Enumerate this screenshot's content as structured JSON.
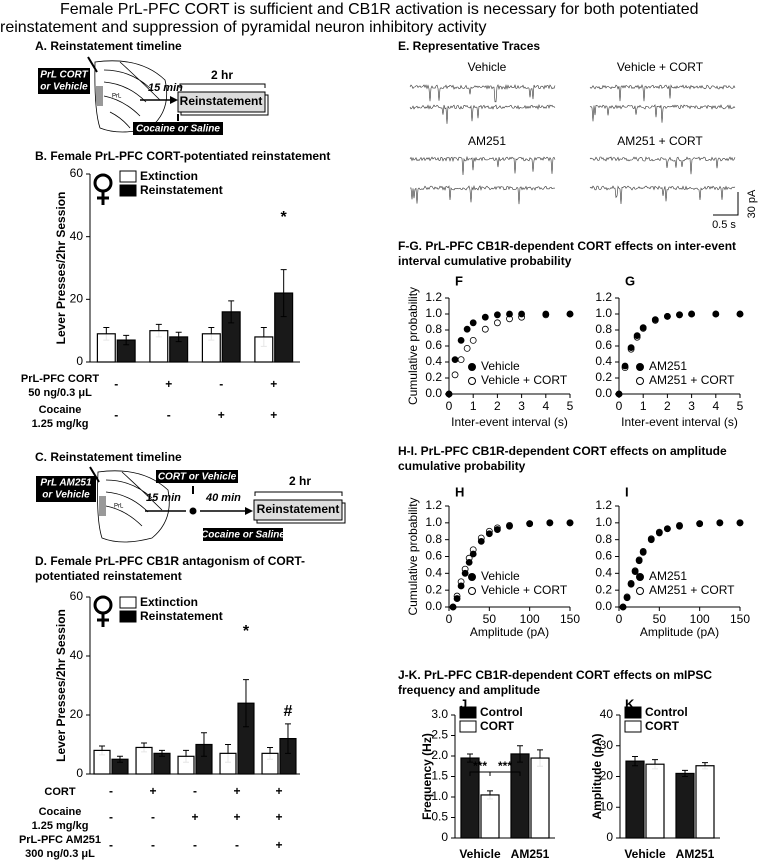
{
  "title": [
    "Female PrL-PFC CORT is sufficient and CB1R activation is necessary for both potentiated",
    "reinstatement and suppression of pyramidal neuron inhibitory activity"
  ],
  "panel_a": {
    "title": "A. Reinstatement timeline",
    "treatment": [
      "PrL CORT",
      "or Vehicle"
    ],
    "region": "PrL",
    "delay": "15 min",
    "duration": "2 hr",
    "session": "Reinstatement",
    "prime": "Cocaine or Saline"
  },
  "panel_c": {
    "title": "C. Reinstatement timeline",
    "treatment": [
      "PrL AM251",
      "or Vehicle"
    ],
    "region": "PrL",
    "second_treatment": "CORT or Vehicle",
    "delay_1": "15 min",
    "delay_2": "40 min",
    "duration": "2 hr",
    "session": "Reinstatement",
    "prime": "Cocaine or Saline"
  },
  "panel_e": {
    "title": "E. Representative Traces",
    "conditions": [
      "Vehicle",
      "Vehicle + CORT",
      "AM251",
      "AM251 + CORT"
    ],
    "scale_y": "30 pA",
    "scale_x": "0.5 s"
  },
  "headings": {
    "fg": [
      "F-G. PrL-PFC CB1R-dependent CORT effects on inter-event",
      "interval cumulative probability"
    ],
    "hi": [
      "H-I. PrL-PFC CB1R-dependent CORT effects on amplitude",
      "cumulative probability"
    ],
    "jk": [
      "J-K. PrL-PFC CB1R-dependent CORT effects on mIPSC",
      "frequency and amplitude"
    ]
  },
  "chart_data": [
    {
      "type": "bar",
      "title": [
        "B. Female PrL-PFC CORT-potentiated reinstatement"
      ],
      "ylabel": "Lever Presses/2hr Session",
      "categories": [
        null,
        null,
        null,
        null
      ],
      "ylim": [
        0,
        60
      ],
      "yticks": [
        0,
        20,
        40,
        60
      ],
      "series": [
        {
          "name": "Extinction",
          "color": "#ffffff",
          "values": [
            9,
            10,
            9,
            8
          ],
          "errors": [
            2,
            2,
            2,
            3
          ]
        },
        {
          "name": "Reinstatement",
          "color": "#000000",
          "values": [
            7,
            8,
            16,
            22
          ],
          "errors": [
            1.5,
            1.5,
            3.5,
            7.5
          ]
        }
      ],
      "annotations": [
        "*"
      ],
      "conditions": [
        {
          "label": "PrL-PFC CORT",
          "sublabel": "50 ng/0.3 μL",
          "values": [
            "-",
            "+",
            "-",
            "+"
          ]
        },
        {
          "label": "Cocaine",
          "sublabel": "1.25 mg/kg",
          "values": [
            "-",
            "-",
            "+",
            "+"
          ]
        }
      ]
    },
    {
      "type": "bar",
      "title": [
        "D. Female PrL-PFC CB1R antagonism of CORT-",
        "potentiated reinstatement"
      ],
      "ylabel": "Lever Presses/2hr Session",
      "categories": [
        null,
        null,
        null,
        null,
        null
      ],
      "ylim": [
        0,
        60
      ],
      "yticks": [
        0,
        20,
        40,
        60
      ],
      "series": [
        {
          "name": "Extinction",
          "color": "#ffffff",
          "values": [
            8,
            9,
            6,
            7,
            7
          ],
          "errors": [
            1.5,
            1.5,
            2,
            3,
            2
          ]
        },
        {
          "name": "Reinstatement",
          "color": "#000000",
          "values": [
            5,
            7,
            10,
            24,
            12
          ],
          "errors": [
            1,
            1,
            4,
            8,
            5
          ]
        }
      ],
      "annotations": [
        "*",
        "#"
      ],
      "conditions": [
        {
          "label": "CORT",
          "values": [
            "-",
            "+",
            "-",
            "+",
            "+"
          ]
        },
        {
          "label": "Cocaine",
          "sublabel": "1.25 mg/kg",
          "values": [
            "-",
            "-",
            "+",
            "+",
            "+"
          ]
        },
        {
          "label": "PrL-PFC AM251",
          "sublabel": "300 ng/0.3 μL",
          "values": [
            "-",
            "-",
            "-",
            "-",
            "+"
          ]
        }
      ]
    },
    {
      "type": "line",
      "panel": "F",
      "ylabel": "Cumulative probability",
      "xlabel": "Inter-event interval (s)",
      "xlim": [
        0,
        5
      ],
      "xticks": [
        0,
        1,
        2,
        3,
        4,
        5
      ],
      "ylim": [
        0,
        1.2
      ],
      "yticks": [
        {
          "value": 0,
          "label": "0.0"
        },
        0.2,
        0.4,
        0.6,
        0.8,
        {
          "value": 1,
          "label": "1.0"
        },
        1.2
      ],
      "x": [
        0,
        0.25,
        0.5,
        0.75,
        1,
        1.5,
        2,
        2.5,
        3,
        4,
        5
      ],
      "series": [
        {
          "name": "Vehicle",
          "color": "#000000",
          "values": [
            0,
            0.43,
            0.67,
            0.81,
            0.89,
            0.96,
            0.99,
            1,
            1,
            1,
            1
          ]
        },
        {
          "name": "Vehicle + CORT",
          "color": "#ffffff",
          "values": [
            0,
            0.24,
            0.43,
            0.57,
            0.67,
            0.81,
            0.89,
            0.94,
            0.96,
            0.99,
            1
          ]
        }
      ]
    },
    {
      "type": "line",
      "panel": "G",
      "xlabel": "Inter-event interval (s)",
      "xlim": [
        0,
        5
      ],
      "xticks": [
        0,
        1,
        2,
        3,
        4,
        5
      ],
      "ylim": [
        0,
        1.2
      ],
      "yticks": [
        {
          "value": 0,
          "label": "0.0"
        },
        0.2,
        0.4,
        0.6,
        0.8,
        {
          "value": 1,
          "label": "1.0"
        },
        1.2
      ],
      "x": [
        0,
        0.25,
        0.5,
        0.75,
        1,
        1.5,
        2,
        2.5,
        3,
        4,
        5
      ],
      "series": [
        {
          "name": "AM251",
          "color": "#000000",
          "values": [
            0,
            0.35,
            0.58,
            0.73,
            0.83,
            0.93,
            0.97,
            0.99,
            1,
            1,
            1
          ]
        },
        {
          "name": "AM251 + CORT",
          "color": "#ffffff",
          "values": [
            0,
            0.33,
            0.56,
            0.71,
            0.82,
            0.92,
            0.97,
            0.99,
            1,
            1,
            1
          ]
        }
      ]
    },
    {
      "type": "line",
      "panel": "H",
      "ylabel": "Cumulative probability",
      "xlabel": "Amplitude (pA)",
      "xlim": [
        0,
        150
      ],
      "xticks": [
        0,
        50,
        100,
        150
      ],
      "ylim": [
        0,
        1.2
      ],
      "yticks": [
        {
          "value": 0,
          "label": "0.0"
        },
        0.2,
        0.4,
        0.6,
        0.8,
        {
          "value": 1,
          "label": "1.0"
        },
        1.2
      ],
      "x": [
        5,
        10,
        15,
        20,
        25,
        30,
        40,
        50,
        60,
        75,
        100,
        125,
        150
      ],
      "series": [
        {
          "name": "Vehicle",
          "color": "#000000",
          "values": [
            0,
            0.1,
            0.25,
            0.4,
            0.53,
            0.63,
            0.78,
            0.87,
            0.92,
            0.96,
            0.99,
            1,
            1
          ]
        },
        {
          "name": "Vehicle + CORT",
          "color": "#ffffff",
          "values": [
            0,
            0.13,
            0.3,
            0.45,
            0.58,
            0.68,
            0.82,
            0.9,
            0.94,
            0.97,
            0.99,
            1,
            1
          ]
        }
      ]
    },
    {
      "type": "line",
      "panel": "I",
      "xlabel": "Amplitude (pA)",
      "xlim": [
        0,
        150
      ],
      "xticks": [
        0,
        50,
        100,
        150
      ],
      "ylim": [
        0,
        1.2
      ],
      "yticks": [
        {
          "value": 0,
          "label": "0.0"
        },
        0.2,
        0.4,
        0.6,
        0.8,
        {
          "value": 1,
          "label": "1.0"
        },
        1.2
      ],
      "x": [
        5,
        10,
        15,
        20,
        25,
        30,
        40,
        50,
        60,
        75,
        100,
        125,
        150
      ],
      "series": [
        {
          "name": "AM251",
          "color": "#000000",
          "values": [
            0,
            0.11,
            0.27,
            0.42,
            0.55,
            0.65,
            0.8,
            0.88,
            0.93,
            0.96,
            0.99,
            1,
            1
          ]
        },
        {
          "name": "AM251 + CORT",
          "color": "#ffffff",
          "values": [
            0,
            0.12,
            0.28,
            0.43,
            0.56,
            0.66,
            0.81,
            0.89,
            0.93,
            0.97,
            0.99,
            1,
            1
          ]
        }
      ]
    },
    {
      "type": "bar",
      "panel": "J",
      "ylabel": "Frequency (Hz)",
      "categories": [
        "Vehicle",
        "AM251"
      ],
      "ylim": [
        0,
        3
      ],
      "yticks": [
        0,
        0.5,
        {
          "value": 1,
          "label": "1.0"
        },
        1.5,
        {
          "value": 2,
          "label": "2.0"
        },
        2.5,
        {
          "value": 3,
          "label": "3.0"
        }
      ],
      "series": [
        {
          "name": "Control",
          "color": "#000000",
          "values": [
            1.95,
            2.05
          ],
          "errors": [
            0.1,
            0.2
          ]
        },
        {
          "name": "CORT",
          "color": "#ffffff",
          "values": [
            1.05,
            1.95
          ],
          "errors": [
            0.1,
            0.2
          ]
        }
      ],
      "annotations": [
        "***",
        "***"
      ]
    },
    {
      "type": "bar",
      "panel": "K",
      "ylabel": "Amplitude (pA)",
      "categories": [
        "Vehicle",
        "AM251"
      ],
      "ylim": [
        0,
        40
      ],
      "yticks": [
        0,
        10,
        20,
        30,
        40
      ],
      "series": [
        {
          "name": "Control",
          "color": "#000000",
          "values": [
            25,
            21
          ],
          "errors": [
            1.5,
            1
          ]
        },
        {
          "name": "CORT",
          "color": "#ffffff",
          "values": [
            24,
            23.5
          ],
          "errors": [
            1.5,
            1
          ]
        }
      ]
    }
  ]
}
